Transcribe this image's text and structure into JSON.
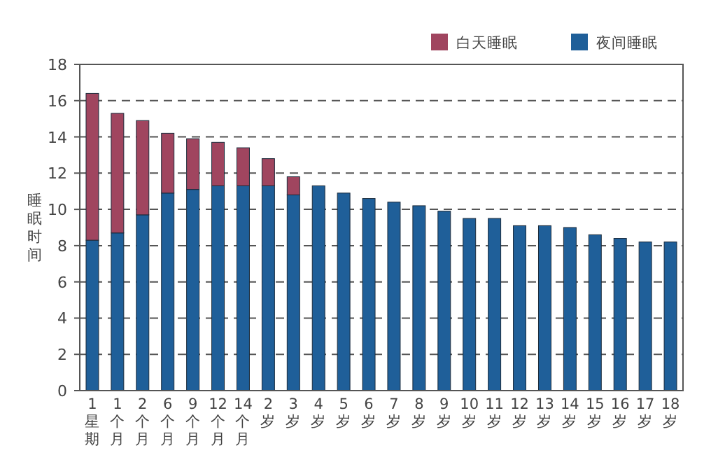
{
  "chart_data": {
    "type": "bar",
    "stacked": true,
    "ylabel": "睡眠时间",
    "categories": [
      "1星期",
      "1个月",
      "2个月",
      "6个月",
      "9个月",
      "12个月",
      "14个月",
      "2岁",
      "3岁",
      "4岁",
      "5岁",
      "6岁",
      "7岁",
      "8岁",
      "9岁",
      "10岁",
      "11岁",
      "12岁",
      "13岁",
      "14岁",
      "15岁",
      "16岁",
      "17岁",
      "18岁"
    ],
    "series": [
      {
        "name": "夜间睡眠",
        "color": "#1f5f99",
        "values": [
          8.3,
          8.7,
          9.7,
          10.9,
          11.1,
          11.3,
          11.3,
          11.3,
          10.8,
          11.3,
          10.9,
          10.6,
          10.4,
          10.2,
          9.9,
          9.5,
          9.5,
          9.1,
          9.1,
          9.0,
          8.6,
          8.4,
          8.2,
          8.2
        ]
      },
      {
        "name": "白天睡眠",
        "color": "#a0455f",
        "values": [
          8.1,
          6.6,
          5.2,
          3.3,
          2.8,
          2.4,
          2.1,
          1.5,
          1.0,
          null,
          null,
          null,
          null,
          null,
          null,
          null,
          null,
          null,
          null,
          null,
          null,
          null,
          null,
          null
        ]
      }
    ],
    "ylim": [
      0,
      18
    ],
    "yticks": [
      0,
      2,
      4,
      6,
      8,
      10,
      12,
      14,
      16,
      18
    ],
    "grid": "y",
    "legend": "top right"
  }
}
